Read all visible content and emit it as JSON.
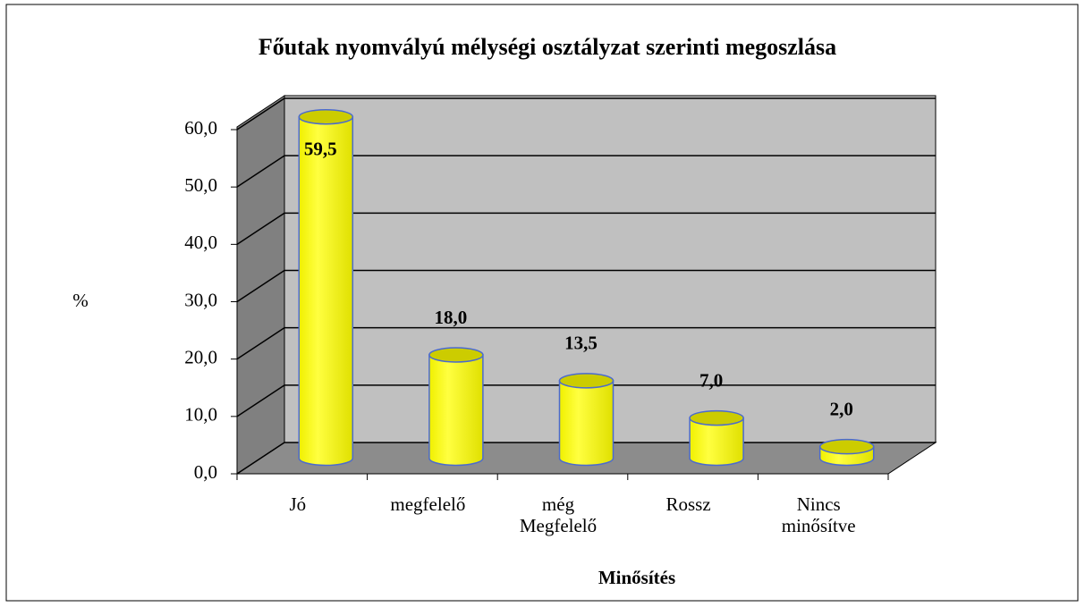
{
  "chart_data": {
    "type": "bar3d",
    "title": "Főutak nyomvályú mélységi osztályzat szerinti megoszlása",
    "y_axis_label": "%",
    "x_axis_label": "Minősítés",
    "categories": [
      "Jó",
      "megfelelő",
      "még\nMegfelelő",
      "Rossz",
      "Nincs\nminősítve"
    ],
    "values": [
      59.5,
      18.0,
      13.5,
      7.0,
      2.0
    ],
    "value_labels": [
      "59,5",
      "18,0",
      "13,5",
      "7,0",
      "2,0"
    ],
    "color": "#ffff00",
    "ylim": [
      0,
      60
    ],
    "yticks": [
      {
        "value": 0,
        "label": "0,0"
      },
      {
        "value": 10,
        "label": "10,0"
      },
      {
        "value": 20,
        "label": "20,0"
      },
      {
        "value": 30,
        "label": "30,0"
      },
      {
        "value": 40,
        "label": "40,0"
      },
      {
        "value": 50,
        "label": "50,0"
      },
      {
        "value": 60,
        "label": "60,0"
      }
    ],
    "grid": true
  }
}
